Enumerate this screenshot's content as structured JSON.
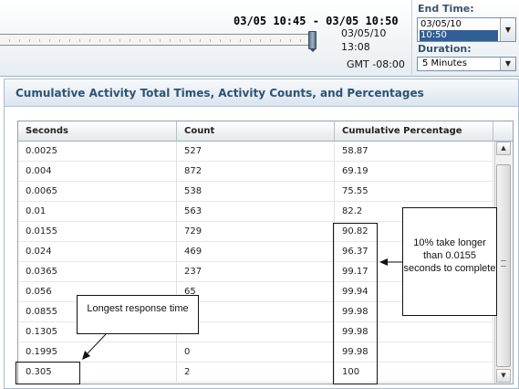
{
  "time_range": {
    "range_label": "03/05 10:45 - 03/05 10:50",
    "cursor_date": "03/05/10",
    "cursor_time": "13:08",
    "timezone": "GMT -08:00"
  },
  "end_time": {
    "label": "End Time:",
    "date": "03/05/10",
    "time": "10:50"
  },
  "duration": {
    "label": "Duration:",
    "selected": "5 Minutes"
  },
  "panel": {
    "title": "Cumulative Activity Total Times, Activity Counts, and Percentages"
  },
  "table": {
    "headers": [
      "Seconds",
      "Count",
      "Cumulative Percentage"
    ],
    "rows": [
      [
        "0.0025",
        "527",
        "58.87"
      ],
      [
        "0.004",
        "872",
        "69.19"
      ],
      [
        "0.0065",
        "538",
        "75.55"
      ],
      [
        "0.01",
        "563",
        "82.2"
      ],
      [
        "0.0155",
        "729",
        "90.82"
      ],
      [
        "0.024",
        "469",
        "96.37"
      ],
      [
        "0.0365",
        "237",
        "99.17"
      ],
      [
        "0.056",
        "65",
        "99.94"
      ],
      [
        "0.0855",
        "",
        "99.98"
      ],
      [
        "0.1305",
        "",
        "99.98"
      ],
      [
        "0.1995",
        "0",
        "99.98"
      ],
      [
        "0.305",
        "2",
        "100"
      ]
    ]
  },
  "annotations": {
    "right_callout": "10% take longer than 0.0155 seconds to complete",
    "left_callout": "Longest response time"
  }
}
